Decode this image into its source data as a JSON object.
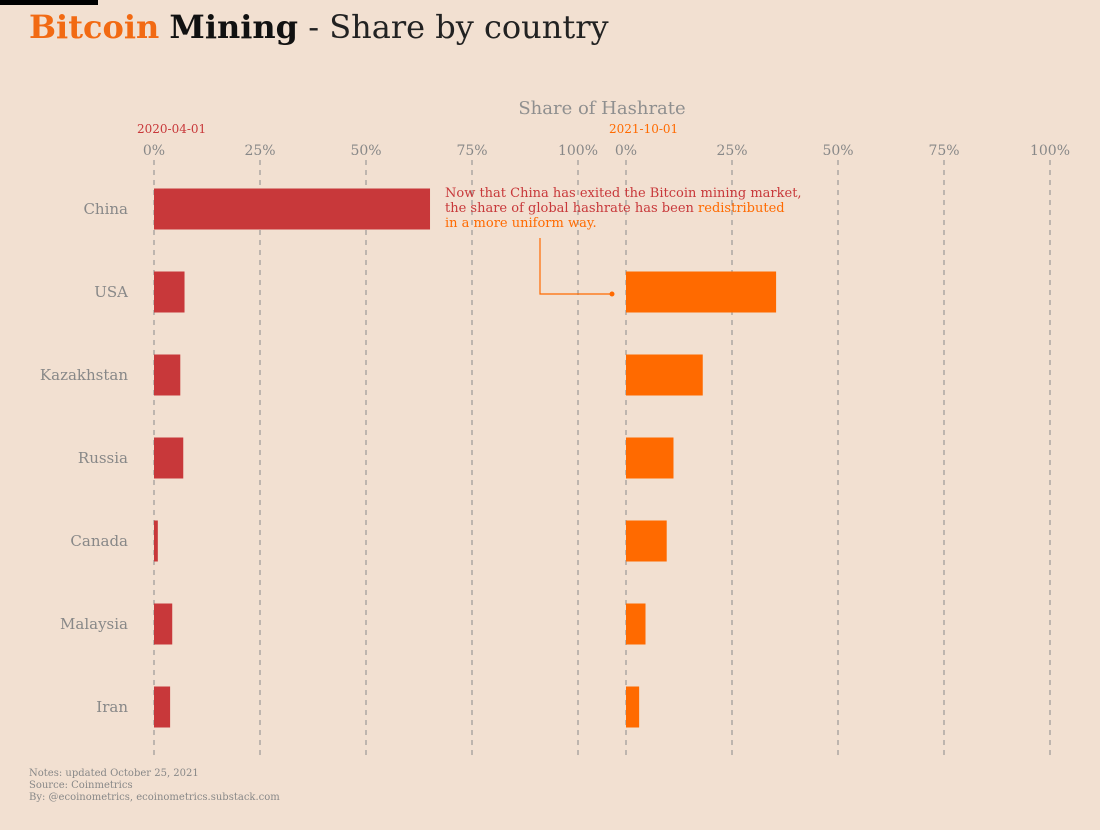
{
  "title": {
    "part1": "Bitcoin",
    "part2": "Mining",
    "part3": " - Share by country"
  },
  "colors": {
    "left": "#c8383a",
    "right": "#ff6a00",
    "grid": "#8a8a8a",
    "tick": "#888888",
    "background": "#f2e0d1"
  },
  "chart_data": {
    "type": "bar",
    "orientation": "horizontal",
    "title": "Share of Hashrate",
    "categories": [
      "China",
      "USA",
      "Kazakhstan",
      "Russia",
      "Canada",
      "Malaysia",
      "Iran"
    ],
    "xlim": [
      0,
      100
    ],
    "ticks": [
      "0%",
      "25%",
      "50%",
      "75%",
      "100%"
    ],
    "tick_values": [
      0,
      25,
      50,
      75,
      100
    ],
    "series": [
      {
        "name": "2020-04-01",
        "values": [
          65.1,
          7.2,
          6.2,
          6.9,
          0.9,
          4.3,
          3.8
        ]
      },
      {
        "name": "2021-10-01",
        "values": [
          0,
          35.4,
          18.1,
          11.2,
          9.6,
          4.6,
          3.1
        ]
      }
    ],
    "annotation": {
      "line1": "Now that China has exited the Bitcoin mining market,",
      "line2a": "the share of global hashrate has been ",
      "line2b": "redistributed",
      "line3": "in a more uniform way."
    }
  },
  "notes": [
    "Notes: updated October 25, 2021",
    "Source: Coinmetrics",
    "By: @ecoinometrics, ecoinometrics.substack.com"
  ]
}
